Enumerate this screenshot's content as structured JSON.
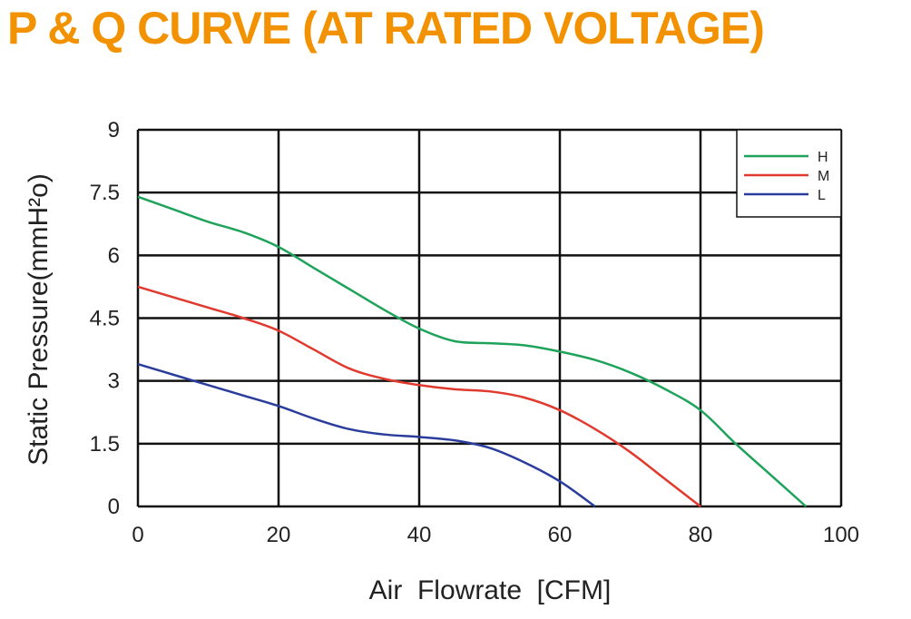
{
  "title": "P & Q CURVE (AT RATED VOLTAGE)",
  "chart_data": {
    "type": "line",
    "xlabel": "Air  Flowrate  [CFM]",
    "ylabel": "Static Pressure(mmH²o)",
    "xlim": [
      0,
      100
    ],
    "ylim": [
      0,
      9
    ],
    "xticks": [
      "0",
      "20",
      "40",
      "60",
      "80",
      "100"
    ],
    "yticks": [
      "0",
      "1.5",
      "3",
      "4.5",
      "6",
      "7.5",
      "9"
    ],
    "grid": true,
    "legend_position": "top-right",
    "series": [
      {
        "name": "H",
        "color": "#1FA35B",
        "x": [
          0,
          5,
          10,
          15,
          20,
          25,
          30,
          35,
          40,
          45,
          50,
          55,
          60,
          65,
          70,
          75,
          80,
          85,
          90,
          95
        ],
        "y": [
          7.4,
          7.1,
          6.8,
          6.55,
          6.2,
          5.7,
          5.2,
          4.7,
          4.25,
          3.95,
          3.9,
          3.85,
          3.7,
          3.5,
          3.2,
          2.8,
          2.3,
          1.5,
          0.75,
          0
        ]
      },
      {
        "name": "M",
        "color": "#E03A2F",
        "x": [
          0,
          5,
          10,
          15,
          20,
          25,
          30,
          35,
          40,
          45,
          50,
          55,
          60,
          65,
          70,
          75,
          80
        ],
        "y": [
          5.25,
          5.0,
          4.75,
          4.5,
          4.2,
          3.75,
          3.3,
          3.05,
          2.9,
          2.8,
          2.75,
          2.6,
          2.3,
          1.85,
          1.3,
          0.65,
          0
        ]
      },
      {
        "name": "L",
        "color": "#2B3D9C",
        "x": [
          0,
          5,
          10,
          15,
          20,
          25,
          30,
          35,
          40,
          45,
          50,
          55,
          60,
          65
        ],
        "y": [
          3.4,
          3.15,
          2.9,
          2.65,
          2.4,
          2.1,
          1.85,
          1.72,
          1.66,
          1.58,
          1.4,
          1.05,
          0.6,
          0
        ]
      }
    ]
  }
}
